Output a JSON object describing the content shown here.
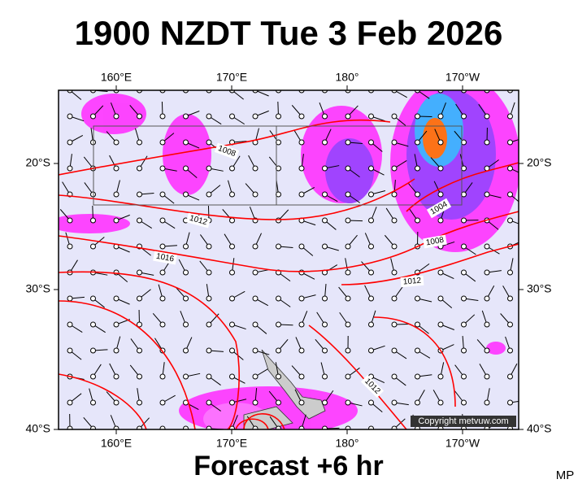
{
  "header": {
    "title": "1900 NZDT Tue 3 Feb 2026"
  },
  "map": {
    "top_lon_labels": [
      "160°E",
      "170°E",
      "180°",
      "170°W"
    ],
    "bottom_lon_labels": [
      "160°E",
      "170°E",
      "180°",
      "170°W"
    ],
    "left_lat_labels": [
      "20°S",
      "30°S",
      "40°S"
    ],
    "right_lat_labels": [
      "20°S",
      "30°S",
      "40°S"
    ],
    "isobar_labels": [
      "1008",
      "1012",
      "1016",
      "1012",
      "1004",
      "1008",
      "1012"
    ],
    "copyright": "Copyright metvuw.com"
  },
  "footer": {
    "forecast": "Forecast +6 hr",
    "initials": "MP"
  }
}
